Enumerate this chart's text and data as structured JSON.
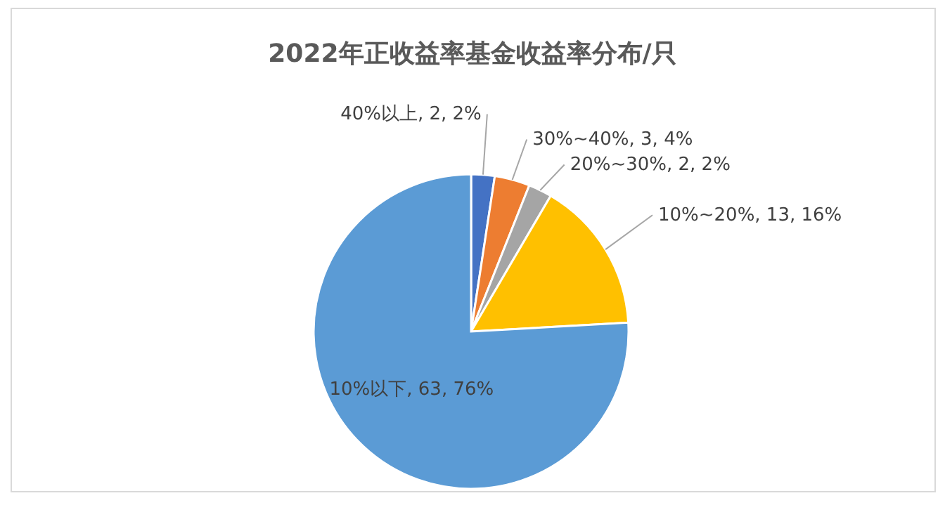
{
  "chart_data": {
    "type": "pie",
    "title": "2022年正收益率基金收益率分布/只",
    "categories": [
      "40%以上",
      "30%~40%",
      "20%~30%",
      "10%~20%",
      "10%以下"
    ],
    "values": [
      2,
      3,
      2,
      13,
      63
    ],
    "colors": [
      "#4472c4",
      "#ed7d31",
      "#a5a5a5",
      "#ffc000",
      "#5b9bd5"
    ],
    "value_labels": [
      "2, 2%",
      "3, 4%",
      "2, 2%",
      "13, 16%",
      "63, 76%"
    ]
  }
}
